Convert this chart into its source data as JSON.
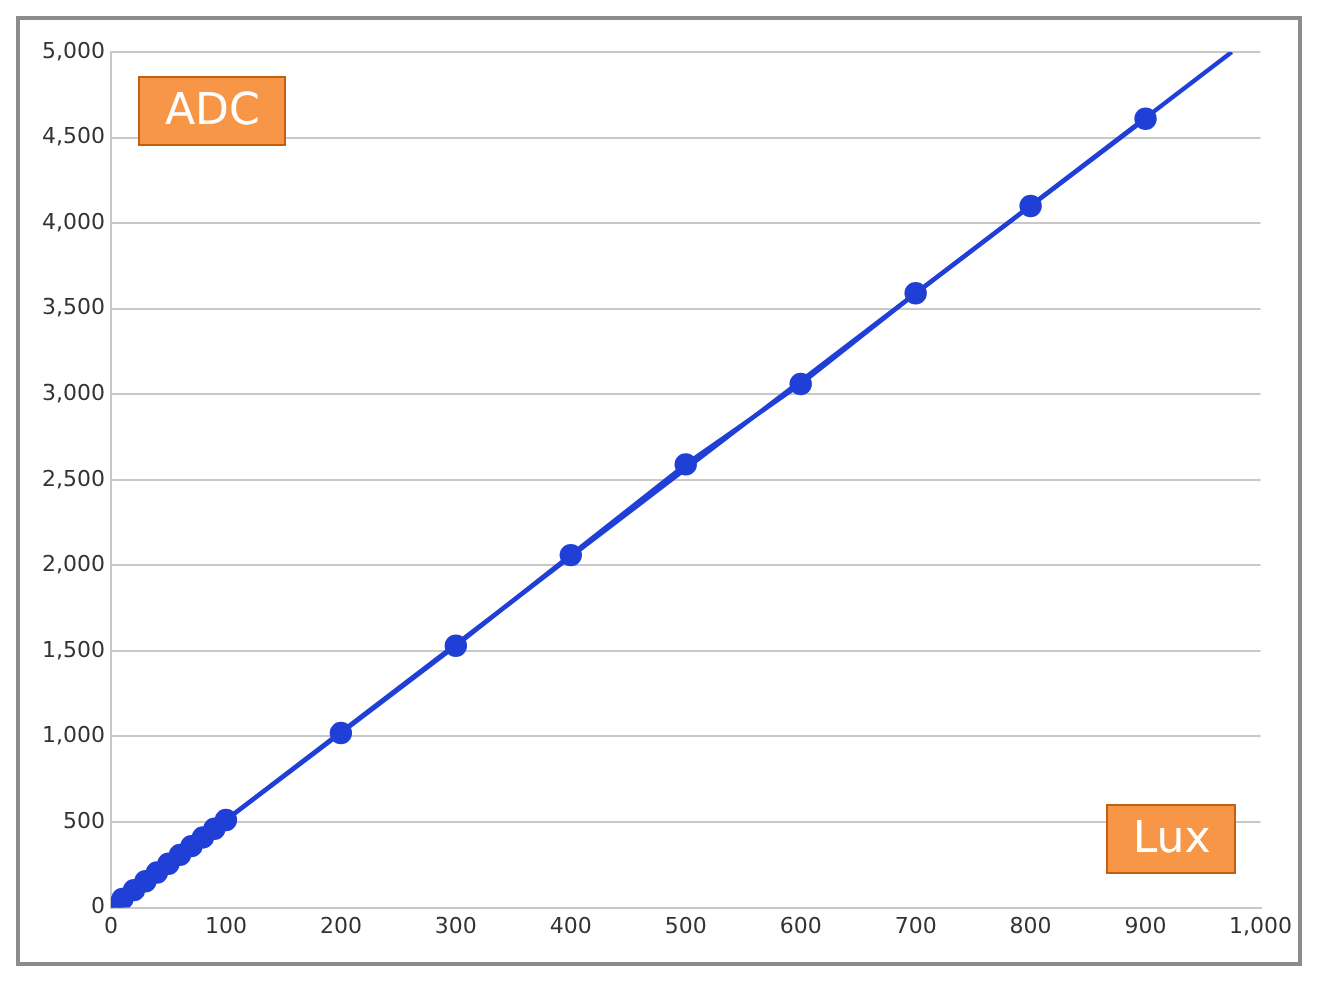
{
  "chart_data": {
    "type": "line",
    "xlabel": "Lux",
    "ylabel": "ADC",
    "x": [
      0,
      10,
      20,
      30,
      40,
      50,
      60,
      70,
      80,
      90,
      100,
      200,
      300,
      400,
      500,
      600,
      700,
      800,
      900
    ],
    "series": [
      {
        "color": "#1f3fd6",
        "values": [
          0,
          51,
          102,
          154,
          205,
          256,
          308,
          359,
          410,
          461,
          512,
          1020,
          1530,
          2060,
          2590,
          3060,
          3590,
          4100,
          4610
        ],
        "marker": "circle"
      },
      {
        "type": "line",
        "color": "#1f3fd6",
        "x": [
          0,
          975
        ],
        "values": [
          0,
          5000
        ],
        "marker": "none"
      }
    ],
    "xlim": [
      0,
      1000
    ],
    "xticks": [
      0,
      100,
      200,
      300,
      400,
      500,
      600,
      700,
      800,
      900,
      {
        "value": 1000,
        "label": "1,000"
      }
    ],
    "ylim": [
      0,
      5000
    ],
    "yticks": [
      0,
      500,
      {
        "value": 1000,
        "label": "1,000"
      },
      {
        "value": 1500,
        "label": "1,500"
      },
      {
        "value": 2000,
        "label": "2,000"
      },
      {
        "value": 2500,
        "label": "2,500"
      },
      {
        "value": 3000,
        "label": "3,000"
      },
      {
        "value": 3500,
        "label": "3,500"
      },
      {
        "value": 4000,
        "label": "4,000"
      },
      {
        "value": 4500,
        "label": "4,500"
      },
      {
        "value": 5000,
        "label": "5,000"
      }
    ],
    "grid": "y",
    "legend": false,
    "line_style": "solid"
  }
}
